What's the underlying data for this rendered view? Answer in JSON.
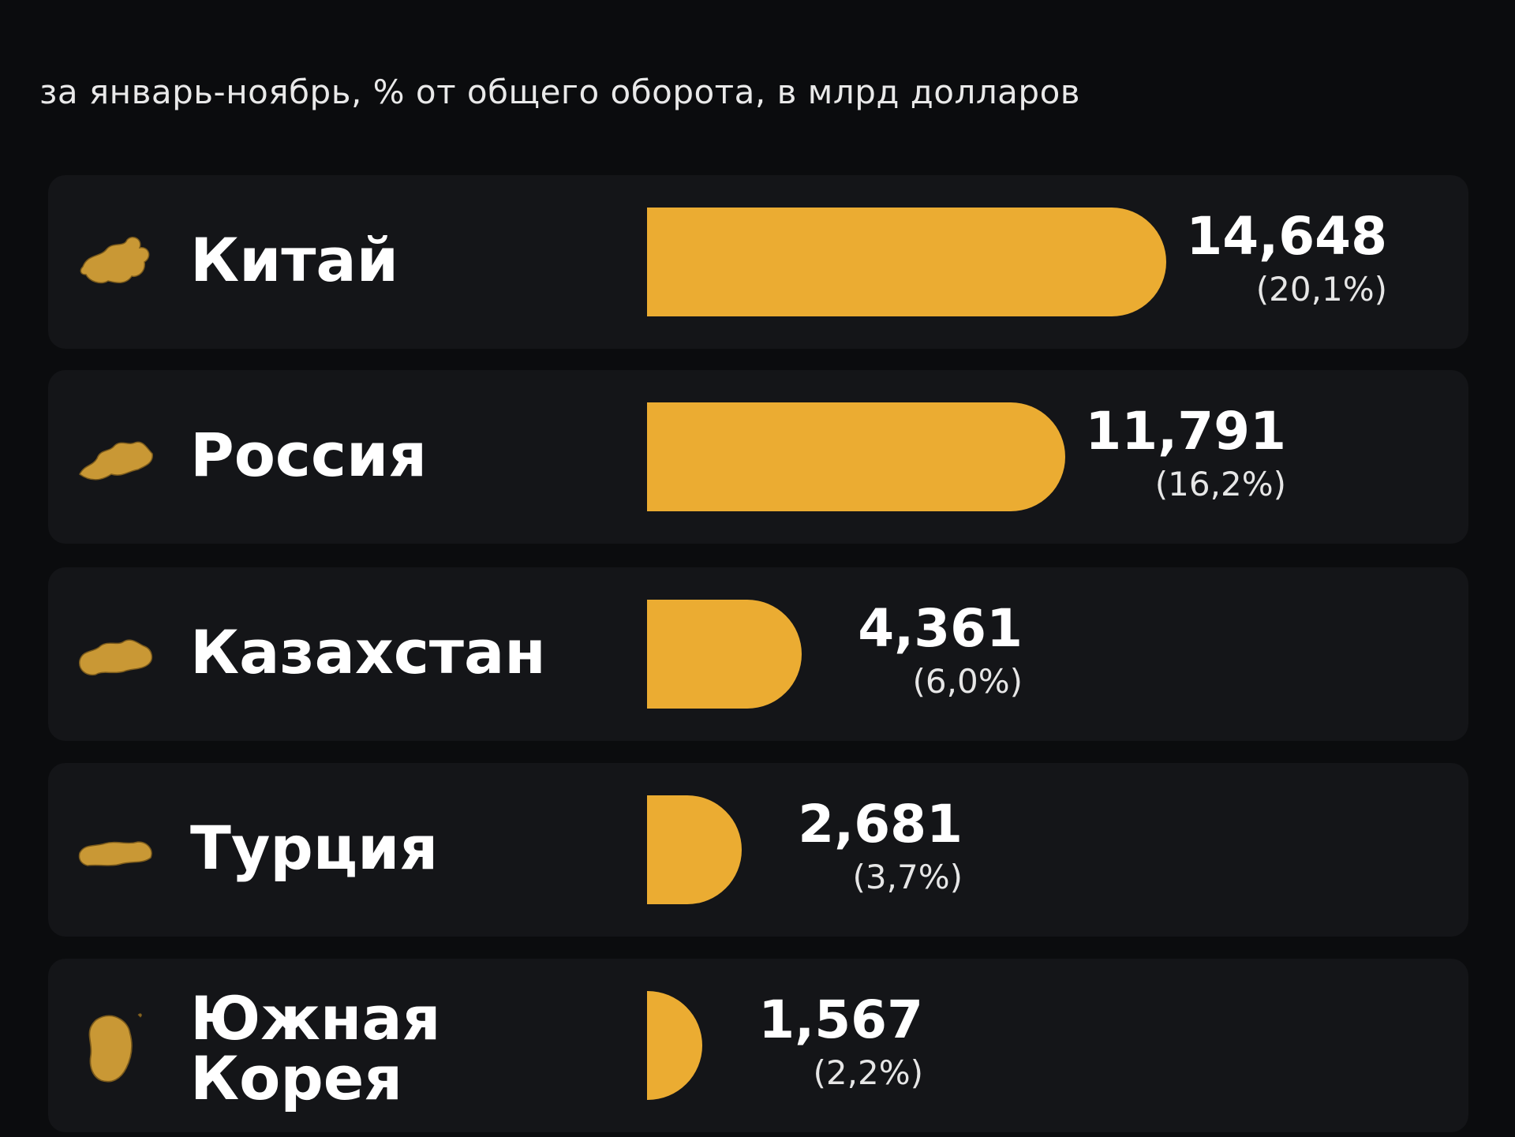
{
  "subtitle": "за январь-ноябрь, % от общего оборота, в млрд долларов",
  "colors": {
    "background": "#0b0c0e",
    "row": "#141518",
    "bar": "#ebac32",
    "icon": "#c99835"
  },
  "chart_data": {
    "type": "bar",
    "orientation": "horizontal",
    "subtitle": "за январь-ноябрь, % от общего оборота, в млрд долларов",
    "categories": [
      "Китай",
      "Россия",
      "Казахстан",
      "Турция",
      "Южная Корея"
    ],
    "category_lines": [
      [
        "Китай"
      ],
      [
        "Россия"
      ],
      [
        "Казахстан"
      ],
      [
        "Турция"
      ],
      [
        "Южная",
        "Корея"
      ]
    ],
    "icons": [
      "china-map-icon",
      "russia-map-icon",
      "kazakhstan-map-icon",
      "turkey-map-icon",
      "south-korea-map-icon"
    ],
    "values": [
      14.648,
      11.791,
      4.361,
      2.681,
      1.567
    ],
    "value_labels": [
      "14,648",
      "11,791",
      "4,361",
      "2,681",
      "1,567"
    ],
    "percent_labels": [
      "(20,1%)",
      "(16,2%)",
      "(6,0%)",
      "(3,7%)",
      "(2,2%)"
    ],
    "xlim": [
      0,
      14.648
    ],
    "grid": false,
    "legend": "none"
  }
}
